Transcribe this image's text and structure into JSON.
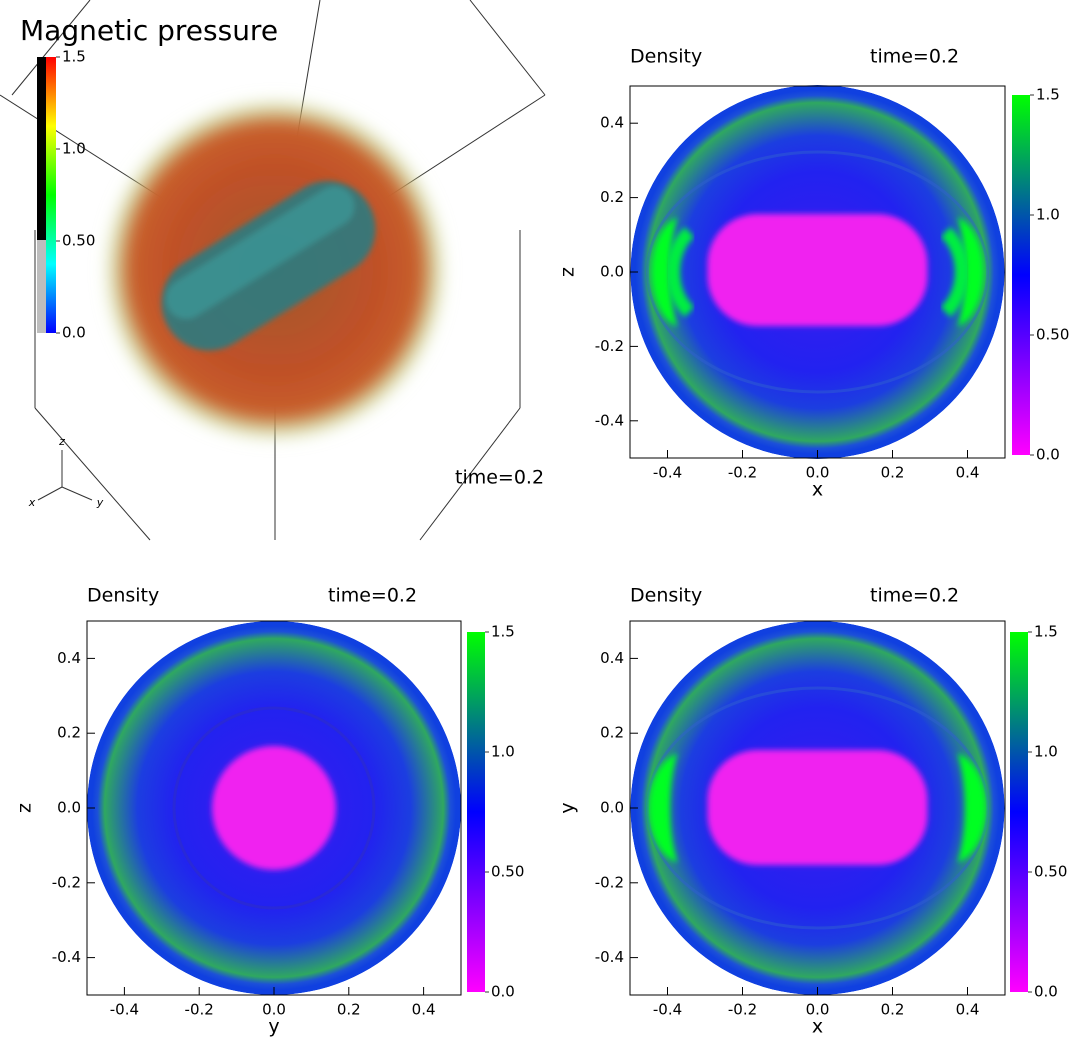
{
  "chart_data": [
    {
      "type": "volume",
      "title": "Magnetic pressure",
      "annotation": "time=0.2",
      "colormap": [
        "#0000ff",
        "#00ffff",
        "#00ff00",
        "#ffff00",
        "#ff0000"
      ],
      "clim": [
        0,
        1.5
      ],
      "cticks": [
        {
          "value": 0,
          "label": "0.0"
        },
        {
          "value": 0.5,
          "label": "0.50"
        },
        {
          "value": 1,
          "label": "1.0"
        },
        1.5
      ],
      "axes_labels": [
        "z",
        "x",
        "y"
      ]
    },
    {
      "type": "heatmap",
      "title": "Density",
      "annotation": "time=0.2",
      "xlabel": "x",
      "ylabel": "z",
      "xlim": [
        -0.5,
        0.5
      ],
      "ylim": [
        -0.5,
        0.5
      ],
      "xticks": [
        -0.4,
        -0.2,
        {
          "value": 0,
          "label": "0.0"
        },
        0.2,
        0.4
      ],
      "yticks": [
        -0.4,
        -0.2,
        {
          "value": 0,
          "label": "0.0"
        },
        0.2,
        0.4
      ],
      "colormap": [
        "#ff00ff",
        "#0000ff",
        "#00ff00"
      ],
      "clim": [
        0,
        1.5
      ],
      "cticks": [
        {
          "value": 0,
          "label": "0.0"
        },
        {
          "value": 0.5,
          "label": "0.50"
        },
        {
          "value": 1,
          "label": "1.0"
        },
        1.5
      ]
    },
    {
      "type": "heatmap",
      "title": "Density",
      "annotation": "time=0.2",
      "xlabel": "y",
      "ylabel": "z",
      "xlim": [
        -0.5,
        0.5
      ],
      "ylim": [
        -0.5,
        0.5
      ],
      "xticks": [
        -0.4,
        -0.2,
        {
          "value": 0,
          "label": "0.0"
        },
        0.2,
        0.4
      ],
      "yticks": [
        -0.4,
        -0.2,
        {
          "value": 0,
          "label": "0.0"
        },
        0.2,
        0.4
      ],
      "colormap": [
        "#ff00ff",
        "#0000ff",
        "#00ff00"
      ],
      "clim": [
        0,
        1.5
      ],
      "cticks": [
        {
          "value": 0,
          "label": "0.0"
        },
        {
          "value": 0.5,
          "label": "0.50"
        },
        {
          "value": 1,
          "label": "1.0"
        },
        1.5
      ]
    },
    {
      "type": "heatmap",
      "title": "Density",
      "annotation": "time=0.2",
      "xlabel": "x",
      "ylabel": "y",
      "xlim": [
        -0.5,
        0.5
      ],
      "ylim": [
        -0.5,
        0.5
      ],
      "xticks": [
        -0.4,
        -0.2,
        {
          "value": 0,
          "label": "0.0"
        },
        0.2,
        0.4
      ],
      "yticks": [
        -0.4,
        -0.2,
        {
          "value": 0,
          "label": "0.0"
        },
        0.2,
        0.4
      ],
      "colormap": [
        "#ff00ff",
        "#0000ff",
        "#00ff00"
      ],
      "clim": [
        0,
        1.5
      ],
      "cticks": [
        {
          "value": 0,
          "label": "0.0"
        },
        {
          "value": 0.5,
          "label": "0.50"
        },
        {
          "value": 1,
          "label": "1.0"
        },
        1.5
      ]
    }
  ]
}
